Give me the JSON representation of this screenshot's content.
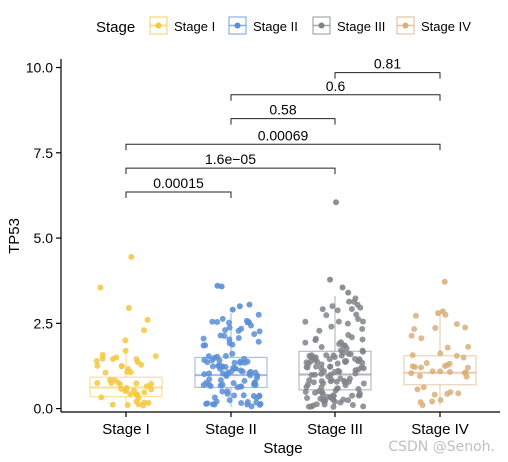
{
  "watermark": "CSDN @Senoh.",
  "chart_data": {
    "type": "boxplot-jitter",
    "title": "",
    "xlabel": "Stage",
    "ylabel": "TP53",
    "ylim": [
      -0.1,
      10.25
    ],
    "yticks": [
      0.0,
      2.5,
      5.0,
      7.5,
      10.0
    ],
    "ytick_labels": [
      "0.0",
      "2.5",
      "5.0",
      "7.5",
      "10.0"
    ],
    "legend": {
      "title": "Stage",
      "position": "top"
    },
    "categories": [
      "Stage I",
      "Stage II",
      "Stage III",
      "Stage IV"
    ],
    "colors": [
      "#F5C842",
      "#5B8ED6",
      "#808488",
      "#D9AF7A"
    ],
    "boxes": [
      {
        "name": "Stage I",
        "q1": 0.35,
        "median": 0.62,
        "q3": 0.92,
        "whisker_low": 0.02,
        "whisker_high": 1.7
      },
      {
        "name": "Stage II",
        "q1": 0.62,
        "median": 0.98,
        "q3": 1.5,
        "whisker_low": 0.05,
        "whisker_high": 2.8
      },
      {
        "name": "Stage III",
        "q1": 0.55,
        "median": 1.0,
        "q3": 1.68,
        "whisker_low": 0.05,
        "whisker_high": 3.3
      },
      {
        "name": "Stage IV",
        "q1": 0.7,
        "median": 1.05,
        "q3": 1.55,
        "whisker_low": 0.08,
        "whisker_high": 2.8
      }
    ],
    "outliers": [
      {
        "group": 0,
        "values": [
          4.45,
          3.55,
          2.95,
          2.6,
          2.3,
          2.0
        ]
      },
      {
        "group": 1,
        "values": [
          3.6,
          3.58,
          3.05,
          3.0,
          2.9
        ]
      },
      {
        "group": 2,
        "values": [
          6.05,
          3.78,
          3.55,
          3.4
        ]
      },
      {
        "group": 3,
        "values": [
          3.72,
          2.85,
          2.8
        ]
      }
    ],
    "point_counts": [
      45,
      105,
      135,
      40
    ],
    "comparisons": [
      {
        "from": 0,
        "to": 1,
        "y": 6.35,
        "label": "0.00015"
      },
      {
        "from": 0,
        "to": 2,
        "y": 7.05,
        "label": "1.6e−05"
      },
      {
        "from": 0,
        "to": 3,
        "y": 7.75,
        "label": "0.00069"
      },
      {
        "from": 1,
        "to": 2,
        "y": 8.5,
        "label": "0.58"
      },
      {
        "from": 1,
        "to": 3,
        "y": 9.2,
        "label": "0.6"
      },
      {
        "from": 2,
        "to": 3,
        "y": 9.85,
        "label": "0.81"
      }
    ]
  }
}
